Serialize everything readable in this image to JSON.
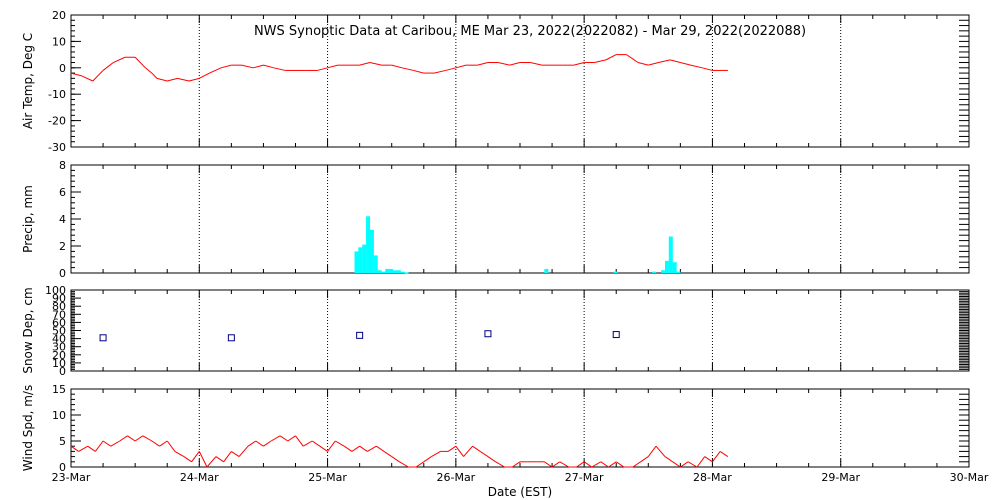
{
  "chart_data": {
    "type": "line",
    "title": "NWS Synoptic Data at Caribou, ME   Mar 23, 2022(2022082) - Mar 29, 2022(2022088)",
    "xlabel": "Date (EST)",
    "x_ticks": [
      "23-Mar",
      "24-Mar",
      "25-Mar",
      "26-Mar",
      "27-Mar",
      "28-Mar",
      "29-Mar",
      "30-Mar"
    ],
    "xlim_days": [
      0,
      7
    ],
    "panels": [
      {
        "id": "temp",
        "type": "line",
        "ylabel": "Air Temp, Deg C",
        "ylim": [
          -30,
          20
        ],
        "yticks": [
          -30,
          -20,
          -10,
          0,
          10,
          20
        ],
        "color": "#ff0000",
        "series": [
          {
            "x": [
              0,
              0.08,
              0.17,
              0.25,
              0.33,
              0.42,
              0.5,
              0.58,
              0.63,
              0.67,
              0.75,
              0.83,
              0.92,
              1.0,
              1.04,
              1.08,
              1.17,
              1.25,
              1.33,
              1.42,
              1.5,
              1.58,
              1.67,
              1.75,
              1.83,
              1.92,
              2.0,
              2.08,
              2.17,
              2.25,
              2.33,
              2.42,
              2.5,
              2.58,
              2.67,
              2.75,
              2.83,
              2.92,
              3.0,
              3.08,
              3.17,
              3.25,
              3.33,
              3.42,
              3.5,
              3.58,
              3.67,
              3.75,
              3.83,
              3.92,
              4.0,
              4.08,
              4.17,
              4.25,
              4.33,
              4.42,
              4.5,
              4.58,
              4.67,
              4.75,
              4.83,
              4.92,
              5.0,
              5.08,
              5.12
            ],
            "y": [
              -2,
              -3,
              -5,
              -1,
              2,
              4,
              4,
              0,
              -2,
              -4,
              -5,
              -4,
              -5,
              -4,
              -3,
              -2,
              0,
              1,
              1,
              0,
              1,
              0,
              -1,
              -1,
              -1,
              -1,
              0,
              1,
              1,
              1,
              2,
              1,
              1,
              0,
              -1,
              -2,
              -2,
              -1,
              0,
              1,
              1,
              2,
              2,
              1,
              2,
              2,
              1,
              1,
              1,
              1,
              2,
              2,
              3,
              5,
              5,
              2,
              1,
              2,
              3,
              2,
              1,
              0,
              -1,
              -1,
              -1
            ]
          }
        ]
      },
      {
        "id": "precip",
        "type": "bar",
        "ylabel": "Precip, mm",
        "ylim": [
          0,
          8
        ],
        "yticks": [
          0,
          2,
          4,
          6,
          8
        ],
        "color": "#00ffff",
        "series": [
          {
            "x": [
              2.21,
              2.24,
              2.27,
              2.3,
              2.33,
              2.36,
              2.39,
              2.42,
              2.45,
              2.48,
              2.51,
              2.54,
              2.57,
              2.6,
              3.69,
              4.23,
              4.53,
              4.6,
              4.63,
              4.66,
              4.69,
              4.72
            ],
            "y": [
              1.6,
              1.9,
              2.1,
              4.2,
              3.2,
              1.3,
              0.2,
              0.1,
              0.3,
              0.3,
              0.2,
              0.2,
              0.1,
              0.05,
              0.3,
              0.1,
              0.1,
              0.2,
              0.9,
              2.7,
              0.8,
              0.1
            ]
          }
        ]
      },
      {
        "id": "snow",
        "type": "scatter",
        "ylabel": "Snow Dep, cm",
        "ylim": [
          0,
          100
        ],
        "yticks": [
          0,
          10,
          20,
          30,
          40,
          50,
          60,
          70,
          80,
          90,
          100
        ],
        "color": "#000080",
        "series": [
          {
            "x": [
              0.25,
              1.25,
              2.25,
              3.25,
              4.25
            ],
            "y": [
              41,
              41,
              44,
              46,
              45
            ]
          }
        ]
      },
      {
        "id": "wind",
        "type": "line",
        "ylabel": "Wind Spd, m/s",
        "ylim": [
          0,
          15
        ],
        "yticks": [
          0,
          5,
          10,
          15
        ],
        "color": "#ff0000",
        "series": [
          {
            "x": [
              0,
              0.06,
              0.13,
              0.19,
              0.25,
              0.31,
              0.38,
              0.44,
              0.5,
              0.56,
              0.63,
              0.69,
              0.75,
              0.81,
              0.88,
              0.94,
              1.0,
              1.06,
              1.13,
              1.19,
              1.25,
              1.31,
              1.38,
              1.44,
              1.5,
              1.56,
              1.63,
              1.69,
              1.75,
              1.81,
              1.88,
              1.94,
              2.0,
              2.06,
              2.13,
              2.19,
              2.25,
              2.31,
              2.38,
              2.44,
              2.5,
              2.56,
              2.63,
              2.69,
              2.75,
              2.81,
              2.88,
              2.94,
              3.0,
              3.06,
              3.13,
              3.19,
              3.25,
              3.31,
              3.38,
              3.44,
              3.5,
              3.56,
              3.63,
              3.69,
              3.75,
              3.81,
              3.88,
              3.94,
              4.0,
              4.06,
              4.13,
              4.19,
              4.25,
              4.31,
              4.38,
              4.44,
              4.5,
              4.56,
              4.63,
              4.69,
              4.75,
              4.81,
              4.88,
              4.94,
              5.0,
              5.06,
              5.12
            ],
            "y": [
              4,
              3,
              4,
              3,
              5,
              4,
              5,
              6,
              5,
              6,
              5,
              4,
              5,
              3,
              2,
              1,
              3,
              0,
              2,
              1,
              3,
              2,
              4,
              5,
              4,
              5,
              6,
              5,
              6,
              4,
              5,
              4,
              3,
              5,
              4,
              3,
              4,
              3,
              4,
              3,
              2,
              1,
              0,
              0,
              1,
              2,
              3,
              3,
              4,
              2,
              4,
              3,
              2,
              1,
              0,
              0,
              1,
              1,
              1,
              1,
              0,
              1,
              0,
              0,
              1,
              0,
              1,
              0,
              1,
              0,
              0,
              1,
              2,
              4,
              2,
              1,
              0,
              1,
              0,
              2,
              1,
              3,
              2
            ]
          }
        ]
      }
    ]
  }
}
